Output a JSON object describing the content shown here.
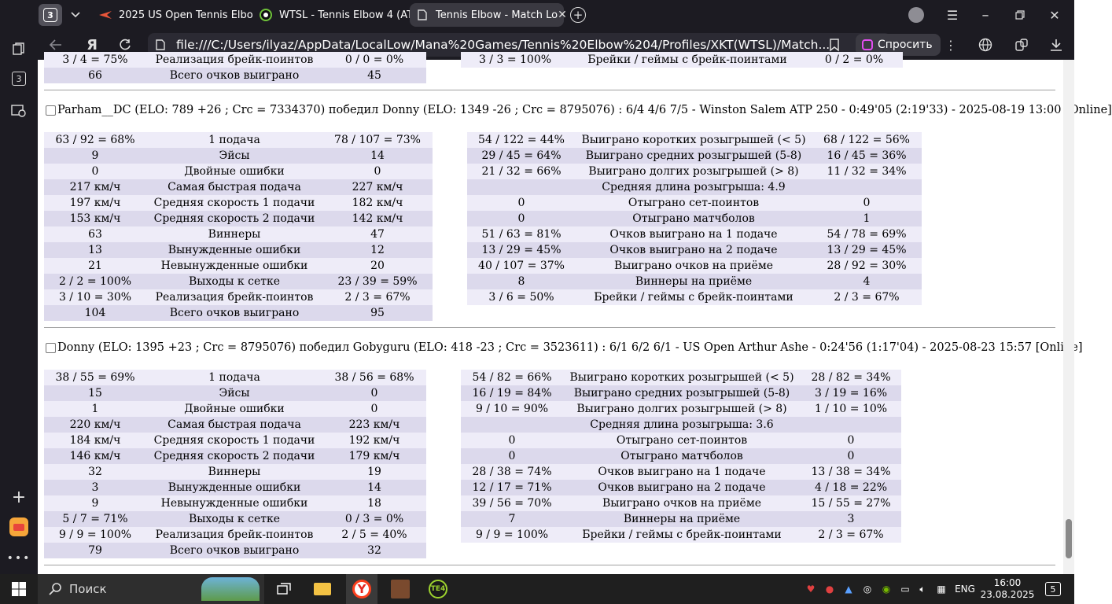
{
  "browser": {
    "tab_count": "3",
    "tabs": [
      {
        "title": "2025 US Open Tennis Elbo",
        "icon": "bolt-icon"
      },
      {
        "title": "WTSL - Tennis Elbow 4 (AT",
        "icon": "game-icon"
      },
      {
        "title": "Tennis Elbow - Match Lo",
        "icon": "document-icon",
        "active": true
      }
    ],
    "address": "file:///C:/Users/ilyaz/AppData/LocalLow/Mana%20Games/Tennis%20Elbow%204/Profiles/XKT(WTSL)/Match...",
    "ask_button": "Спросить",
    "colors": {
      "chrome": "#1c1b22",
      "address_bg": "#2b2a33",
      "ask_accent": "#e44df2"
    }
  },
  "sidebar": {
    "badge": "3"
  },
  "top_partial": {
    "left_row_cut": [
      "3 / 4 = 75%",
      "Реализация брейк-поинтов",
      "0 / 0 = 0%"
    ],
    "left_row_total": [
      "66",
      "Всего очков выиграно",
      "45"
    ],
    "right_row_cut": [
      "3 / 3 = 100%",
      "Брейки / геймы с брейк-поинтами",
      "0 / 2 = 0%"
    ]
  },
  "matches": [
    {
      "header": "Parham__DC (ELO: 789 +26 ; Crc = 7334370) победил Donny (ELO: 1349 -26 ; Crc = 8795076) : 6/4 4/6 7/5 - Winston Salem ATP 250 - 0:49'05 (2:19'33) - 2025-08-19 13:00 [Online]",
      "serve_stats": [
        [
          "63 / 92 = 68%",
          "1 подача",
          "78 / 107 = 73%"
        ],
        [
          "9",
          "Эйсы",
          "14"
        ],
        [
          "0",
          "Двойные ошибки",
          "0"
        ],
        [
          "217 км/ч",
          "Самая быстрая подача",
          "227 км/ч"
        ],
        [
          "197 км/ч",
          "Средняя скорость 1 подачи",
          "182 км/ч"
        ],
        [
          "153 км/ч",
          "Средняя скорость 2 подачи",
          "142 км/ч"
        ],
        [
          "63",
          "Виннеры",
          "47"
        ],
        [
          "13",
          "Вынужденные ошибки",
          "12"
        ],
        [
          "21",
          "Невынужденные ошибки",
          "20"
        ],
        [
          "2 / 2 = 100%",
          "Выходы к сетке",
          "23 / 39 = 59%"
        ],
        [
          "3 / 10 = 30%",
          "Реализация брейк-поинтов",
          "2 / 3 = 67%"
        ],
        [
          "104",
          "Всего очков выиграно",
          "95"
        ]
      ],
      "rally_stats": [
        [
          "54 / 122 = 44%",
          "Выиграно коротких розыгрышей (< 5)",
          "68 / 122 = 56%"
        ],
        [
          "29 / 45 = 64%",
          "Выиграно средних розыгрышей (5-8)",
          "16 / 45 = 36%"
        ],
        [
          "21 / 32 = 66%",
          "Выиграно долгих розыгрышей (> 8)",
          "11 / 32 = 34%"
        ],
        [
          "",
          "Средняя длина розыгрыша: 4.9",
          ""
        ],
        [
          "0",
          "Отыграно сет-поинтов",
          "0"
        ],
        [
          "0",
          "Отыграно матчболов",
          "1"
        ],
        [
          "51 / 63 = 81%",
          "Очков выиграно на 1 подаче",
          "54 / 78 = 69%"
        ],
        [
          "13 / 29 = 45%",
          "Очков выиграно на 2 подаче",
          "13 / 29 = 45%"
        ],
        [
          "40 / 107 = 37%",
          "Выиграно очков на приёме",
          "28 / 92 = 30%"
        ],
        [
          "8",
          "Виннеры на приёме",
          "4"
        ],
        [
          "3 / 6 = 50%",
          "Брейки / геймы с брейк-поинтами",
          "2 / 3 = 67%"
        ]
      ]
    },
    {
      "header": "Donny (ELO: 1395 +23 ; Crc = 8795076) победил Gobyguru (ELO: 418 -23 ; Crc = 3523611) : 6/1 6/2 6/1 - US Open Arthur Ashe - 0:24'56 (1:17'04) - 2025-08-23 15:57 [Online]",
      "serve_stats": [
        [
          "38 / 55 = 69%",
          "1 подача",
          "38 / 56 = 68%"
        ],
        [
          "15",
          "Эйсы",
          "0"
        ],
        [
          "1",
          "Двойные ошибки",
          "0"
        ],
        [
          "220 км/ч",
          "Самая быстрая подача",
          "223 км/ч"
        ],
        [
          "184 км/ч",
          "Средняя скорость 1 подачи",
          "192 км/ч"
        ],
        [
          "146 км/ч",
          "Средняя скорость 2 подачи",
          "179 км/ч"
        ],
        [
          "32",
          "Виннеры",
          "19"
        ],
        [
          "3",
          "Вынужденные ошибки",
          "14"
        ],
        [
          "9",
          "Невынужденные ошибки",
          "18"
        ],
        [
          "5 / 7 = 71%",
          "Выходы к сетке",
          "0 / 3 = 0%"
        ],
        [
          "9 / 9 = 100%",
          "Реализация брейк-поинтов",
          "2 / 5 = 40%"
        ],
        [
          "79",
          "Всего очков выиграно",
          "32"
        ]
      ],
      "rally_stats": [
        [
          "54 / 82 = 66%",
          "Выиграно коротких розыгрышей (< 5)",
          "28 / 82 = 34%"
        ],
        [
          "16 / 19 = 84%",
          "Выиграно средних розыгрышей (5-8)",
          "3 / 19 = 16%"
        ],
        [
          "9 / 10 = 90%",
          "Выиграно долгих розыгрышей (> 8)",
          "1 / 10 = 10%"
        ],
        [
          "",
          "Средняя длина розыгрыша: 3.6",
          ""
        ],
        [
          "0",
          "Отыграно сет-поинтов",
          "0"
        ],
        [
          "0",
          "Отыграно матчболов",
          "0"
        ],
        [
          "28 / 38 = 74%",
          "Очков выиграно на 1 подаче",
          "13 / 38 = 34%"
        ],
        [
          "12 / 17 = 71%",
          "Очков выиграно на 2 подаче",
          "4 / 18 = 22%"
        ],
        [
          "39 / 56 = 70%",
          "Выиграно очков на приёме",
          "15 / 55 = 27%"
        ],
        [
          "7",
          "Виннеры на приёме",
          "3"
        ],
        [
          "9 / 9 = 100%",
          "Брейки / геймы с брейк-поинтами",
          "2 / 3 = 67%"
        ]
      ]
    }
  ],
  "taskbar": {
    "search_placeholder": "Поиск",
    "language": "ENG",
    "time": "16:00",
    "date": "23.08.2025",
    "notifications": "5"
  }
}
